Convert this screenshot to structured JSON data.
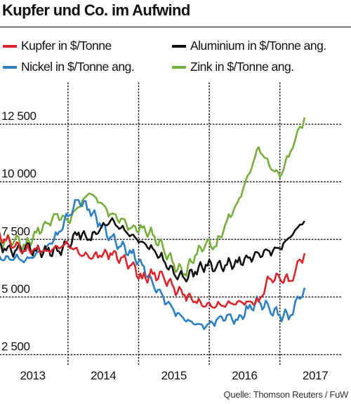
{
  "title": "Kupfer und Co. im Aufwind",
  "source": "Quelle: Thomson Reuters / FuW",
  "legend": [
    {
      "label": "Kupfer in $/Tonne",
      "color": "#d7262e"
    },
    {
      "label": "Aluminium in $/Tonne ang.",
      "color": "#111111"
    },
    {
      "label": "Nickel in $/Tonne ang.",
      "color": "#2d7fc1"
    },
    {
      "label": "Zink in $/Tonne ang.",
      "color": "#78ad3c"
    }
  ],
  "chart_data": {
    "type": "line",
    "title": "Kupfer und Co. im Aufwind",
    "xlabel": "",
    "ylabel": "",
    "x_ticks": [
      "2013",
      "2014",
      "2015",
      "2016",
      "2017"
    ],
    "y_ticks": [
      "2 500",
      "5 000",
      "7 500",
      "10 000",
      "12 500"
    ],
    "y_tick_values": [
      2500,
      5000,
      7500,
      10000,
      12500
    ],
    "xlim": [
      2012.6,
      2017.45
    ],
    "ylim": [
      2000,
      14300
    ],
    "grid": "dotted vertical and horizontal",
    "series": [
      {
        "name": "Kupfer in $/Tonne",
        "color": "#d7262e",
        "x": [
          2012.65,
          2012.8,
          2012.95,
          2013.1,
          2013.25,
          2013.4,
          2013.55,
          2013.7,
          2013.85,
          2014.0,
          2014.15,
          2014.3,
          2014.45,
          2014.6,
          2014.75,
          2014.9,
          2015.05,
          2015.2,
          2015.35,
          2015.5,
          2015.65,
          2015.8,
          2015.95,
          2016.1,
          2016.25,
          2016.4,
          2016.55,
          2016.7,
          2016.85,
          2017.0,
          2017.15,
          2017.35
        ],
        "y": [
          8100,
          7900,
          7700,
          7500,
          7200,
          7000,
          7100,
          7000,
          7200,
          7300,
          6900,
          6700,
          6800,
          6900,
          6700,
          6400,
          5800,
          6000,
          5900,
          5400,
          5100,
          4800,
          4600,
          4600,
          4700,
          4800,
          4800,
          4800,
          5800,
          5800,
          5700,
          6900
        ]
      },
      {
        "name": "Aluminium in $/Tonne ang.",
        "color": "#111111",
        "x": [
          2012.65,
          2012.8,
          2012.95,
          2013.1,
          2013.25,
          2013.4,
          2013.55,
          2013.7,
          2013.85,
          2014.0,
          2014.15,
          2014.3,
          2014.45,
          2014.6,
          2014.75,
          2014.9,
          2015.05,
          2015.2,
          2015.35,
          2015.5,
          2015.65,
          2015.8,
          2015.95,
          2016.1,
          2016.25,
          2016.4,
          2016.55,
          2016.7,
          2016.85,
          2017.0,
          2017.15,
          2017.35
        ],
        "y": [
          8200,
          7700,
          7300,
          7100,
          7000,
          7200,
          7000,
          7000,
          7000,
          7300,
          7800,
          7500,
          7900,
          8300,
          8000,
          7700,
          7400,
          7100,
          6600,
          6000,
          5800,
          6100,
          6400,
          6300,
          6400,
          6500,
          6700,
          6900,
          7000,
          7100,
          7600,
          8300
        ]
      },
      {
        "name": "Nickel in $/Tonne ang.",
        "color": "#2d7fc1",
        "x": [
          2012.65,
          2012.8,
          2012.95,
          2013.1,
          2013.25,
          2013.4,
          2013.55,
          2013.7,
          2013.85,
          2014.0,
          2014.15,
          2014.3,
          2014.45,
          2014.6,
          2014.75,
          2014.9,
          2015.05,
          2015.2,
          2015.35,
          2015.5,
          2015.65,
          2015.8,
          2015.95,
          2016.1,
          2016.25,
          2016.4,
          2016.55,
          2016.7,
          2016.85,
          2017.0,
          2017.15,
          2017.35
        ],
        "y": [
          8300,
          7400,
          6900,
          6600,
          6700,
          6600,
          6900,
          7200,
          7700,
          8500,
          9200,
          8800,
          8200,
          7600,
          7200,
          6900,
          6400,
          5600,
          5000,
          4400,
          4000,
          3800,
          3700,
          4000,
          4200,
          4000,
          4500,
          4800,
          4500,
          4200,
          4200,
          5400
        ]
      },
      {
        "name": "Zink in $/Tonne ang.",
        "color": "#78ad3c",
        "x": [
          2012.65,
          2012.8,
          2012.95,
          2013.1,
          2013.25,
          2013.4,
          2013.55,
          2013.7,
          2013.85,
          2014.0,
          2014.15,
          2014.3,
          2014.45,
          2014.6,
          2014.75,
          2014.9,
          2015.05,
          2015.2,
          2015.35,
          2015.5,
          2015.65,
          2015.8,
          2015.95,
          2016.1,
          2016.25,
          2016.4,
          2016.55,
          2016.7,
          2016.85,
          2017.0,
          2017.15,
          2017.35
        ],
        "y": [
          8400,
          7800,
          7300,
          7400,
          7500,
          7200,
          7800,
          8200,
          8600,
          8300,
          8900,
          9500,
          9100,
          8600,
          8400,
          8000,
          8000,
          7700,
          7100,
          6400,
          6000,
          6800,
          7300,
          7200,
          8300,
          9100,
          10300,
          11500,
          10700,
          10200,
          11300,
          12800
        ]
      }
    ]
  }
}
